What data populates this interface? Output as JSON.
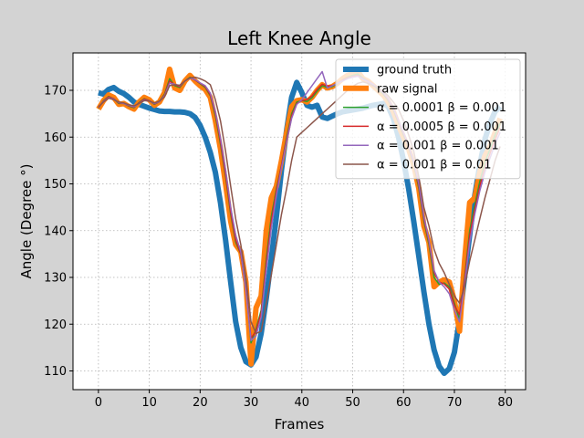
{
  "chart_data": {
    "type": "line",
    "title": "Left Knee Angle",
    "xlabel": "Frames",
    "ylabel": "Angle (Degree °)",
    "xlim": [
      -5,
      84
    ],
    "ylim": [
      106,
      178
    ],
    "xticks": [
      0,
      10,
      20,
      30,
      40,
      50,
      60,
      70,
      80
    ],
    "yticks": [
      110,
      120,
      130,
      140,
      150,
      160,
      170
    ],
    "grid": true,
    "legend_position": "top-right",
    "series": [
      {
        "name": "ground truth",
        "color": "#1f77b4",
        "width": "thick",
        "x": [
          0,
          1,
          2,
          3,
          4,
          5,
          6,
          7,
          8,
          9,
          10,
          11,
          12,
          13,
          14,
          15,
          16,
          17,
          18,
          19,
          20,
          21,
          22,
          23,
          24,
          25,
          26,
          27,
          28,
          29,
          30,
          31,
          32,
          33,
          34,
          35,
          36,
          37,
          38,
          39,
          40,
          41,
          42,
          43,
          44,
          45,
          46,
          47,
          48,
          49,
          50,
          51,
          52,
          53,
          54,
          55,
          56,
          57,
          58,
          59,
          60,
          61,
          62,
          63,
          64,
          65,
          66,
          67,
          68,
          69,
          70,
          71,
          72,
          73,
          74,
          75,
          76,
          77,
          78,
          79
        ],
        "values": [
          169.5,
          169.2,
          170.2,
          170.6,
          169.8,
          169.3,
          168.5,
          167.5,
          167.0,
          166.6,
          166.2,
          165.9,
          165.6,
          165.5,
          165.5,
          165.4,
          165.4,
          165.3,
          165.0,
          164.2,
          162.5,
          160.0,
          156.7,
          152.5,
          146.0,
          138.0,
          129.0,
          120.5,
          115.0,
          112.0,
          111.3,
          113.0,
          118.0,
          125.5,
          134.0,
          143.0,
          153.0,
          161.5,
          168.5,
          171.7,
          169.5,
          166.8,
          166.4,
          166.8,
          164.3,
          164.0,
          164.5,
          165.0,
          165.4,
          165.6,
          165.8,
          166.0,
          166.2,
          166.5,
          166.8,
          167.0,
          167.2,
          166.5,
          164.0,
          160.0,
          155.0,
          149.0,
          142.0,
          134.5,
          127.0,
          120.0,
          114.5,
          111.0,
          109.5,
          110.5,
          114.0,
          121.0,
          130.0,
          139.0,
          147.5,
          154.0,
          159.5,
          163.0,
          165.5,
          166.5
        ]
      },
      {
        "name": "raw signal",
        "color": "#ff7f0e",
        "width": "thick",
        "x": [
          0,
          1,
          2,
          3,
          4,
          5,
          6,
          7,
          8,
          9,
          10,
          11,
          12,
          13,
          14,
          15,
          16,
          17,
          18,
          19,
          20,
          21,
          22,
          23,
          24,
          25,
          26,
          27,
          28,
          29,
          30,
          31,
          32,
          33,
          34,
          35,
          36,
          37,
          38,
          39,
          40,
          41,
          42,
          43,
          44,
          45,
          46,
          47,
          48,
          49,
          50,
          51,
          52,
          53,
          54,
          55,
          56,
          57,
          58,
          59,
          60,
          61,
          62,
          63,
          64,
          65,
          66,
          67,
          68,
          69,
          70,
          71,
          72,
          73,
          74,
          75,
          76,
          77,
          78,
          79
        ],
        "values": [
          166.0,
          167.8,
          169.0,
          168.5,
          167.0,
          167.2,
          166.5,
          166.0,
          167.5,
          168.5,
          168.0,
          166.8,
          167.5,
          169.5,
          174.5,
          170.5,
          170.0,
          172.0,
          173.2,
          172.0,
          171.0,
          170.2,
          168.5,
          163.5,
          157.5,
          150.0,
          142.0,
          137.0,
          135.5,
          129.0,
          111.5,
          123.5,
          126.0,
          140.0,
          147.0,
          149.5,
          155.0,
          161.0,
          166.5,
          167.8,
          168.0,
          167.5,
          168.5,
          170.0,
          171.2,
          170.5,
          170.8,
          171.5,
          172.5,
          173.2,
          173.5,
          174.0,
          172.5,
          172.0,
          171.0,
          170.0,
          169.0,
          167.5,
          165.5,
          162.5,
          160.0,
          157.5,
          154.0,
          149.0,
          141.0,
          137.5,
          128.0,
          129.0,
          129.5,
          129.0,
          125.0,
          118.5,
          133.5,
          146.0,
          147.0,
          152.5,
          156.0,
          158.0,
          161.0,
          164.0
        ]
      },
      {
        "name": "α = 0.0001 β = 0.001",
        "color": "#2ca02c",
        "width": "thin",
        "x": [
          0,
          1,
          2,
          3,
          4,
          5,
          6,
          7,
          8,
          9,
          10,
          11,
          12,
          13,
          14,
          15,
          16,
          17,
          18,
          19,
          20,
          21,
          22,
          23,
          24,
          25,
          26,
          27,
          28,
          29,
          30,
          31,
          32,
          33,
          34,
          35,
          36,
          37,
          38,
          39,
          40,
          41,
          42,
          43,
          44,
          45,
          46,
          47,
          48,
          49,
          50,
          51,
          52,
          53,
          54,
          55,
          56,
          57,
          58,
          59,
          60,
          61,
          62,
          63,
          64,
          65,
          66,
          67,
          68,
          69,
          70,
          71,
          72,
          73,
          74,
          75,
          76,
          77,
          78,
          79
        ],
        "values": [
          166.2,
          167.8,
          168.7,
          168.2,
          167.2,
          167.2,
          166.6,
          166.3,
          167.4,
          168.2,
          167.8,
          167.0,
          167.6,
          169.2,
          172.5,
          171.0,
          170.6,
          172.0,
          172.8,
          172.2,
          171.4,
          170.6,
          168.8,
          164.5,
          158.5,
          151.5,
          143.5,
          137.5,
          135.0,
          128.0,
          116.0,
          119.0,
          123.0,
          134.0,
          143.0,
          149.0,
          154.0,
          160.0,
          165.0,
          167.5,
          167.8,
          167.6,
          168.4,
          169.8,
          171.0,
          170.6,
          170.8,
          171.4,
          172.2,
          172.8,
          173.2,
          173.5,
          172.6,
          172.0,
          171.2,
          170.2,
          169.2,
          167.8,
          165.8,
          163.0,
          160.4,
          157.8,
          154.2,
          149.0,
          142.0,
          137.0,
          130.0,
          128.5,
          128.8,
          128.0,
          124.5,
          121.0,
          130.0,
          140.0,
          145.5,
          150.5,
          154.5,
          157.5,
          160.5,
          163.0
        ]
      },
      {
        "name": "α = 0.0005 β = 0.001",
        "color": "#d62728",
        "width": "thin",
        "x": [
          0,
          1,
          2,
          3,
          4,
          5,
          6,
          7,
          8,
          9,
          10,
          11,
          12,
          13,
          14,
          15,
          16,
          17,
          18,
          19,
          20,
          21,
          22,
          23,
          24,
          25,
          26,
          27,
          28,
          29,
          30,
          31,
          32,
          33,
          34,
          35,
          36,
          37,
          38,
          39,
          40,
          41,
          42,
          43,
          44,
          45,
          46,
          47,
          48,
          49,
          50,
          51,
          52,
          53,
          54,
          55,
          56,
          57,
          58,
          59,
          60,
          61,
          62,
          63,
          64,
          65,
          66,
          67,
          68,
          69,
          70,
          71,
          72,
          73,
          74,
          75,
          76,
          77,
          78,
          79
        ],
        "values": [
          166.3,
          167.7,
          168.6,
          168.2,
          167.3,
          167.2,
          166.7,
          166.4,
          167.3,
          168.1,
          167.8,
          167.1,
          167.6,
          169.0,
          172.0,
          171.2,
          170.8,
          172.0,
          172.7,
          172.2,
          171.5,
          170.8,
          169.0,
          165.0,
          159.0,
          152.0,
          144.0,
          138.0,
          135.0,
          127.5,
          117.0,
          118.5,
          122.5,
          133.0,
          142.0,
          148.5,
          154.0,
          159.5,
          164.5,
          167.2,
          167.8,
          168.0,
          168.8,
          170.2,
          171.3,
          170.9,
          171.0,
          171.5,
          172.2,
          172.7,
          173.0,
          173.2,
          172.5,
          172.0,
          171.3,
          170.4,
          169.4,
          168.0,
          166.0,
          163.3,
          160.7,
          158.0,
          154.5,
          149.5,
          142.5,
          137.5,
          131.0,
          129.0,
          128.6,
          127.5,
          124.0,
          122.0,
          129.5,
          139.0,
          144.5,
          149.5,
          153.5,
          156.5,
          159.5,
          162.0
        ]
      },
      {
        "name": "α = 0.001 β = 0.001",
        "color": "#9467bd",
        "width": "thin",
        "x": [
          0,
          1,
          2,
          3,
          4,
          5,
          6,
          7,
          8,
          9,
          10,
          11,
          12,
          13,
          14,
          15,
          16,
          17,
          18,
          19,
          20,
          21,
          22,
          23,
          24,
          25,
          26,
          27,
          28,
          29,
          30,
          31,
          32,
          33,
          34,
          35,
          36,
          37,
          38,
          39,
          40,
          41,
          42,
          43,
          44,
          45,
          46,
          47,
          48,
          49,
          50,
          51,
          52,
          53,
          54,
          55,
          56,
          57,
          58,
          59,
          60,
          61,
          62,
          63,
          64,
          65,
          66,
          67,
          68,
          69,
          70,
          71,
          72,
          73,
          74,
          75,
          76,
          77,
          78,
          79
        ],
        "values": [
          166.4,
          167.6,
          168.4,
          168.1,
          167.4,
          167.2,
          166.8,
          166.5,
          167.2,
          167.9,
          167.7,
          167.2,
          167.6,
          168.8,
          171.5,
          171.3,
          171.0,
          172.0,
          172.6,
          172.3,
          171.6,
          171.0,
          169.4,
          165.5,
          159.8,
          153.0,
          145.0,
          139.0,
          135.5,
          127.0,
          116.5,
          117.5,
          121.5,
          131.5,
          140.5,
          147.5,
          153.5,
          159.0,
          164.0,
          167.0,
          168.0,
          169.5,
          171.0,
          172.5,
          174.0,
          170.5,
          171.0,
          171.5,
          172.0,
          172.5,
          172.8,
          173.0,
          172.4,
          171.9,
          171.3,
          170.5,
          169.5,
          168.2,
          166.2,
          163.6,
          161.0,
          158.3,
          154.8,
          150.0,
          143.0,
          138.0,
          131.5,
          129.0,
          128.0,
          126.5,
          123.0,
          120.5,
          128.5,
          137.5,
          143.5,
          148.5,
          152.5,
          155.5,
          158.5,
          161.0
        ]
      },
      {
        "name": "α = 0.001 β = 0.01",
        "color": "#8c564b",
        "width": "thin",
        "x": [
          0,
          1,
          2,
          3,
          4,
          5,
          6,
          7,
          8,
          9,
          10,
          11,
          12,
          13,
          14,
          15,
          16,
          17,
          18,
          19,
          20,
          21,
          22,
          23,
          24,
          25,
          26,
          27,
          28,
          29,
          30,
          31,
          32,
          33,
          34,
          35,
          36,
          37,
          38,
          39,
          40,
          41,
          42,
          43,
          44,
          45,
          46,
          47,
          48,
          49,
          50,
          51,
          52,
          53,
          54,
          55,
          56,
          57,
          58,
          59,
          60,
          61,
          62,
          63,
          64,
          65,
          66,
          67,
          68,
          69,
          70,
          71,
          72,
          73,
          74,
          75,
          76,
          77,
          78,
          79
        ],
        "values": [
          166.5,
          167.5,
          168.3,
          168.0,
          167.5,
          167.3,
          166.9,
          166.7,
          167.2,
          167.8,
          167.7,
          167.3,
          167.7,
          168.6,
          171.0,
          171.2,
          171.1,
          172.0,
          172.7,
          172.8,
          172.5,
          172.0,
          171.2,
          168.0,
          163.5,
          157.0,
          149.5,
          142.5,
          137.0,
          130.0,
          120.5,
          118.0,
          118.5,
          124.5,
          130.5,
          137.0,
          143.5,
          149.0,
          155.0,
          160.0,
          161.0,
          162.0,
          163.0,
          164.0,
          165.0,
          166.0,
          167.0,
          168.0,
          169.0,
          170.0,
          170.8,
          171.5,
          171.8,
          171.5,
          171.0,
          170.5,
          169.8,
          168.8,
          167.5,
          166.0,
          163.5,
          160.5,
          157.0,
          151.5,
          145.0,
          141.0,
          136.0,
          133.0,
          131.0,
          128.5,
          126.0,
          124.5,
          128.0,
          133.5,
          138.0,
          142.5,
          147.0,
          151.0,
          155.0,
          158.0
        ]
      }
    ]
  }
}
